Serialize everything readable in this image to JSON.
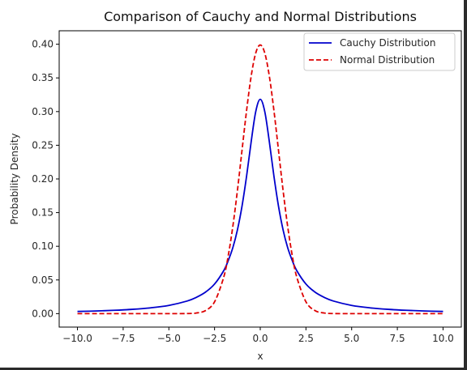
{
  "chart_data": {
    "type": "line",
    "title": "Comparison of Cauchy and Normal Distributions",
    "xlabel": "x",
    "ylabel": "Probability Density",
    "xlim": [
      -11,
      11
    ],
    "ylim": [
      -0.02,
      0.42
    ],
    "x_ticks": [
      -10.0,
      -7.5,
      -5.0,
      -2.5,
      0.0,
      2.5,
      5.0,
      7.5,
      10.0
    ],
    "x_tick_labels": [
      "−10.0",
      "−7.5",
      "−5.0",
      "−2.5",
      "0.0",
      "2.5",
      "5.0",
      "7.5",
      "10.0"
    ],
    "y_ticks": [
      0.0,
      0.05,
      0.1,
      0.15,
      0.2,
      0.25,
      0.3,
      0.35,
      0.4
    ],
    "y_tick_labels": [
      "0.00",
      "0.05",
      "0.10",
      "0.15",
      "0.20",
      "0.25",
      "0.30",
      "0.35",
      "0.40"
    ],
    "grid": false,
    "legend_position": "top-right",
    "x": [
      -10,
      -9,
      -8,
      -7,
      -6,
      -5,
      -4,
      -3.5,
      -3,
      -2.5,
      -2,
      -1.75,
      -1.5,
      -1.25,
      -1,
      -0.75,
      -0.5,
      -0.25,
      0,
      0.25,
      0.5,
      0.75,
      1,
      1.25,
      1.5,
      1.75,
      2,
      2.5,
      3,
      3.5,
      4,
      5,
      6,
      7,
      8,
      9,
      10
    ],
    "series": [
      {
        "name": "Cauchy Distribution",
        "color": "#0000cc",
        "linestyle": "solid",
        "values": [
          0.0032,
          0.0039,
          0.0049,
          0.0064,
          0.0086,
          0.0122,
          0.0187,
          0.0241,
          0.0318,
          0.0439,
          0.0637,
          0.0788,
          0.0979,
          0.1242,
          0.1592,
          0.2037,
          0.2546,
          0.2996,
          0.3183,
          0.2996,
          0.2546,
          0.2037,
          0.1592,
          0.1242,
          0.0979,
          0.0788,
          0.0637,
          0.0439,
          0.0318,
          0.0241,
          0.0187,
          0.0122,
          0.0086,
          0.0064,
          0.0049,
          0.0039,
          0.0032
        ]
      },
      {
        "name": "Normal Distribution",
        "color": "#dd0000",
        "linestyle": "dashed",
        "values": [
          0.0,
          0.0,
          0.0,
          0.0,
          0.0,
          0.0,
          0.0001,
          0.0009,
          0.0044,
          0.0175,
          0.054,
          0.0863,
          0.1295,
          0.1826,
          0.242,
          0.3011,
          0.3521,
          0.3867,
          0.3989,
          0.3867,
          0.3521,
          0.3011,
          0.242,
          0.1826,
          0.1295,
          0.0863,
          0.054,
          0.0175,
          0.0044,
          0.0009,
          0.0001,
          0.0,
          0.0,
          0.0,
          0.0,
          0.0,
          0.0
        ]
      }
    ]
  }
}
